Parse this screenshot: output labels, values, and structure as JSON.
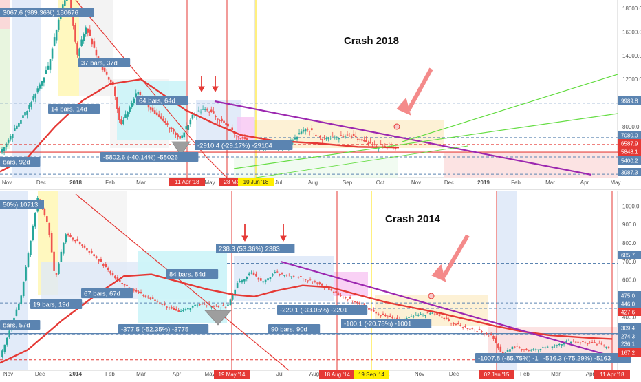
{
  "colors": {
    "up": "#26a69a",
    "down": "#ef5350",
    "ma": "#e53935",
    "trend": "#9c27b0",
    "channel": "#66dd44",
    "label_bg": "#5b84b1",
    "price_tag": "#e53935",
    "blue_tag": "#5b84b1",
    "yellow_tag": "#ffee00",
    "arrow_big": "#f48a8a"
  },
  "chart_data": [
    {
      "type": "candlestick",
      "title": "Crash 2018",
      "x_ticks": [
        "Nov",
        "Dec",
        "2018",
        "Feb",
        "Mar",
        "Apr",
        "May",
        "Jun",
        "Jul",
        "Aug",
        "Sep",
        "Oct",
        "Nov",
        "Dec",
        "2019",
        "Feb",
        "Mar",
        "Apr",
        "May"
      ],
      "y_ticks": [
        "18000.0",
        "16000.0",
        "14000.0",
        "12000.0",
        "10000.0",
        "8000.0",
        "6000.0",
        "4000.0"
      ],
      "price_tags": [
        {
          "value": "9989.8",
          "style": "blue"
        },
        {
          "value": "7080.0",
          "style": "blue"
        },
        {
          "value": "6587.9",
          "style": "red"
        },
        {
          "value": "5848.1",
          "style": "red"
        },
        {
          "value": "5400.2",
          "style": "blue"
        },
        {
          "value": "3987.3",
          "style": "blue"
        }
      ],
      "date_tags": [
        {
          "label": "11 Apr '18",
          "style": "red"
        },
        {
          "label": "28 May '18",
          "style": "red"
        },
        {
          "label": "10 Jun '18",
          "style": "yellow"
        }
      ],
      "annotations": [
        "3067.6 (989.36%) 180676",
        "37 bars, 37d",
        "14 bars, 14d",
        "64 bars, 64d",
        "-2910.4 (-29.17%) -29104",
        "-5802.6 (-40.14%) -58026",
        "bars, 92d"
      ],
      "key_levels": [
        19800,
        17200,
        11200,
        9990,
        6500,
        6000,
        5848,
        6100,
        7080,
        3987
      ]
    },
    {
      "type": "candlestick",
      "title": "Crash 2014",
      "x_ticks": [
        "Nov",
        "Dec",
        "2014",
        "Feb",
        "Mar",
        "Apr",
        "May",
        "Jun",
        "Jul",
        "Aug",
        "Sep",
        "Oct",
        "Nov",
        "Dec",
        "2015",
        "Feb",
        "Mar",
        "Apr"
      ],
      "y_ticks": [
        "1000.0",
        "900.0",
        "800.0",
        "700.0",
        "600.0",
        "500.0",
        "400.0",
        "300.0",
        "200.0"
      ],
      "price_tags": [
        {
          "value": "685.7",
          "style": "blue"
        },
        {
          "value": "475.0",
          "style": "blue"
        },
        {
          "value": "446.0",
          "style": "blue"
        },
        {
          "value": "427.6",
          "style": "red"
        },
        {
          "value": "309.4",
          "style": "blue"
        },
        {
          "value": "274.3",
          "style": "blue"
        },
        {
          "value": "236.1",
          "style": "blue"
        },
        {
          "value": "167.2",
          "style": "red"
        }
      ],
      "date_tags": [
        {
          "label": "19 May '14",
          "style": "red"
        },
        {
          "label": "18 Aug '14",
          "style": "red"
        },
        {
          "label": "19 Sep '14",
          "style": "yellow"
        },
        {
          "label": "02 Jan '15",
          "style": "red"
        },
        {
          "label": "11 Apr '18",
          "style": "red"
        }
      ],
      "annotations": [
        "50%) 10713",
        "19 bars, 19d",
        "67 bars, 67d",
        "84 bars, 84d",
        "238.3 (53.36%) 2383",
        "-377.5 (-52.35%) -3775",
        "90 bars, 90d",
        "-220.1 (-33.05%) -2201",
        "-100.1 (-20.78%) -1001",
        "bars, 57d",
        "-1007.8 (-85.75%) -1",
        "-516.3 (-75.29%) -5163"
      ],
      "key_levels": [
        1150,
        690,
        580,
        620,
        475,
        446,
        430,
        410,
        309,
        236,
        167
      ]
    }
  ]
}
